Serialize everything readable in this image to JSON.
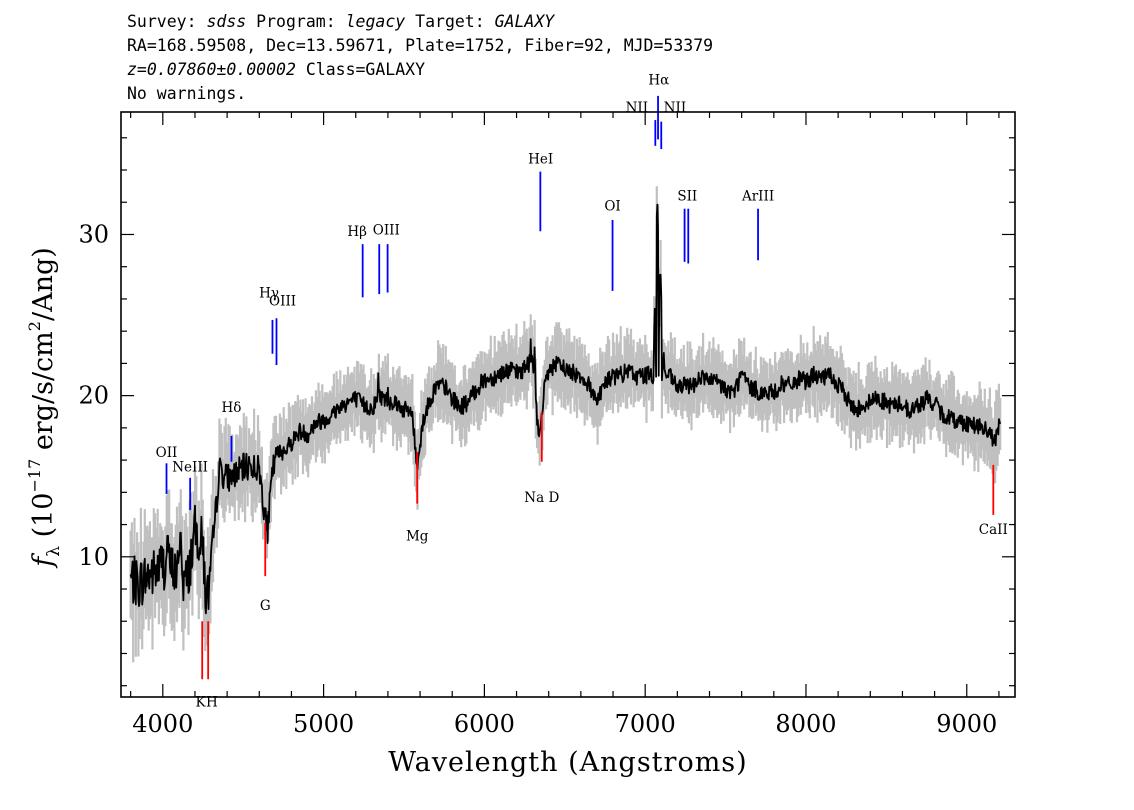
{
  "header": {
    "line1": {
      "survey_label": "Survey:",
      "survey": "sdss",
      "program_label": "Program:",
      "program": "legacy",
      "target_label": "Target:",
      "target": "GALAXY"
    },
    "line2": "RA=168.59508, Dec=13.59671, Plate=1752, Fiber=92, MJD=53379",
    "line3": {
      "z": "z=0.07860±0.00002",
      "class": "Class=GALAXY"
    },
    "line4": "No warnings."
  },
  "chart_data": {
    "type": "line",
    "xlabel": "Wavelength (Angstroms)",
    "ylabel": "f_λ (10^-17 erg/s/cm^2/Ang)",
    "ylabel_parts": {
      "f": "f",
      "lambda": "λ",
      "lead": " (10",
      "exp1": "−17",
      "mid": " erg/s/cm",
      "exp2": "2",
      "tail": "/Ang)"
    },
    "xlim": [
      3740,
      9300
    ],
    "ylim": [
      1.3,
      37.6
    ],
    "x_ticks": [
      4000,
      5000,
      6000,
      7000,
      8000,
      9000
    ],
    "y_ticks": [
      10,
      20,
      30
    ],
    "colors": {
      "flux": "#000000",
      "error_band": "#c0c0c0",
      "emission": "#0000ff",
      "absorption": "#ff0000"
    },
    "continuum": [
      [
        3800,
        8.6
      ],
      [
        3850,
        8.3
      ],
      [
        3900,
        8.8
      ],
      [
        3950,
        9.0
      ],
      [
        4000,
        9.6
      ],
      [
        4050,
        9.3
      ],
      [
        4100,
        9.0
      ],
      [
        4150,
        8.4
      ],
      [
        4200,
        11.6
      ],
      [
        4250,
        10.8
      ],
      [
        4270,
        7.0
      ],
      [
        4300,
        9.0
      ],
      [
        4350,
        15.4
      ],
      [
        4400,
        14.9
      ],
      [
        4450,
        15.1
      ],
      [
        4500,
        15.5
      ],
      [
        4550,
        15.7
      ],
      [
        4600,
        15.4
      ],
      [
        4650,
        11.5
      ],
      [
        4680,
        15.0
      ],
      [
        4700,
        16.3
      ],
      [
        4750,
        16.6
      ],
      [
        4800,
        17.1
      ],
      [
        4850,
        17.8
      ],
      [
        4900,
        17.6
      ],
      [
        4950,
        18.3
      ],
      [
        5000,
        18.5
      ],
      [
        5050,
        18.8
      ],
      [
        5100,
        19.3
      ],
      [
        5150,
        19.6
      ],
      [
        5200,
        19.8
      ],
      [
        5250,
        19.4
      ],
      [
        5300,
        19.2
      ],
      [
        5350,
        20.0
      ],
      [
        5400,
        19.7
      ],
      [
        5450,
        19.6
      ],
      [
        5500,
        19.1
      ],
      [
        5550,
        19.0
      ],
      [
        5580,
        15.6
      ],
      [
        5620,
        18.5
      ],
      [
        5650,
        19.4
      ],
      [
        5700,
        20.6
      ],
      [
        5750,
        20.6
      ],
      [
        5800,
        19.8
      ],
      [
        5850,
        19.3
      ],
      [
        5900,
        19.6
      ],
      [
        5950,
        20.4
      ],
      [
        6000,
        21.0
      ],
      [
        6050,
        21.1
      ],
      [
        6100,
        21.4
      ],
      [
        6150,
        21.6
      ],
      [
        6200,
        21.4
      ],
      [
        6250,
        21.7
      ],
      [
        6300,
        22.3
      ],
      [
        6340,
        17.0
      ],
      [
        6380,
        21.1
      ],
      [
        6400,
        21.6
      ],
      [
        6450,
        21.9
      ],
      [
        6500,
        21.7
      ],
      [
        6550,
        21.4
      ],
      [
        6600,
        21.3
      ],
      [
        6650,
        20.6
      ],
      [
        6700,
        19.8
      ],
      [
        6750,
        20.8
      ],
      [
        6800,
        21.2
      ],
      [
        6850,
        21.3
      ],
      [
        6900,
        21.5
      ],
      [
        6950,
        21.2
      ],
      [
        7000,
        21.3
      ],
      [
        7050,
        21.2
      ],
      [
        7100,
        21.3
      ],
      [
        7150,
        21.2
      ],
      [
        7200,
        20.5
      ],
      [
        7250,
        20.6
      ],
      [
        7300,
        20.7
      ],
      [
        7350,
        21.2
      ],
      [
        7400,
        20.9
      ],
      [
        7450,
        20.8
      ],
      [
        7500,
        20.4
      ],
      [
        7550,
        20.2
      ],
      [
        7600,
        21.3
      ],
      [
        7650,
        20.5
      ],
      [
        7700,
        20.3
      ],
      [
        7750,
        20.1
      ],
      [
        7800,
        20.2
      ],
      [
        7850,
        20.7
      ],
      [
        7900,
        20.6
      ],
      [
        7950,
        21.0
      ],
      [
        8000,
        20.9
      ],
      [
        8050,
        21.3
      ],
      [
        8100,
        21.0
      ],
      [
        8150,
        21.3
      ],
      [
        8200,
        20.6
      ],
      [
        8250,
        20.0
      ],
      [
        8300,
        19.1
      ],
      [
        8350,
        19.4
      ],
      [
        8400,
        19.6
      ],
      [
        8450,
        19.9
      ],
      [
        8500,
        19.5
      ],
      [
        8550,
        19.4
      ],
      [
        8600,
        19.5
      ],
      [
        8650,
        19.0
      ],
      [
        8700,
        19.4
      ],
      [
        8750,
        19.8
      ],
      [
        8800,
        19.5
      ],
      [
        8850,
        18.8
      ],
      [
        8900,
        18.6
      ],
      [
        8950,
        18.4
      ],
      [
        9000,
        18.3
      ],
      [
        9050,
        18.2
      ],
      [
        9100,
        18.0
      ],
      [
        9150,
        17.5
      ],
      [
        9180,
        17.2
      ],
      [
        9210,
        18.5
      ]
    ],
    "emission_peaks": [
      [
        4030,
        12.0
      ],
      [
        4110,
        12.2
      ],
      [
        4362,
        16.4
      ],
      [
        4520,
        16.1
      ],
      [
        5340,
        21.4
      ],
      [
        5400,
        20.5
      ],
      [
        6288,
        23.5
      ],
      [
        6312,
        23.0
      ],
      [
        7035,
        22.0
      ],
      [
        7060,
        25.4
      ],
      [
        7075,
        32.2
      ],
      [
        7094,
        28.2
      ],
      [
        7115,
        23.0
      ],
      [
        7253,
        21.1
      ],
      [
        7275,
        21.0
      ],
      [
        7610,
        22.0
      ]
    ],
    "line_markers": [
      {
        "id": "oii",
        "label": "OII",
        "kind": "emission",
        "wl": 4023,
        "y1": 15.8,
        "y2": 13.9,
        "lx": 4023,
        "ly": 16.2
      },
      {
        "id": "neiii",
        "label": "NeIII",
        "kind": "emission",
        "wl": 4170,
        "y1": 14.9,
        "y2": 12.9,
        "lx": 4170,
        "ly": 15.3
      },
      {
        "id": "hdelta",
        "label": "Hδ",
        "kind": "emission",
        "wl": 4427,
        "y1": 17.5,
        "y2": 15.9,
        "lx": 4427,
        "ly": 19.0
      },
      {
        "id": "hgamma",
        "label": "Hγ",
        "kind": "emission",
        "wl": 4682,
        "y1": 24.7,
        "y2": 22.6,
        "lx": 4661,
        "ly": 26.1
      },
      {
        "id": "oiii-4959",
        "label": "OIII",
        "kind": "emission",
        "wl": 4707,
        "y1": 24.8,
        "y2": 21.9,
        "lx": 4745,
        "ly": 25.6
      },
      {
        "id": "hbeta",
        "label": "Hβ",
        "kind": "emission",
        "wl": 5243,
        "y1": 29.4,
        "y2": 26.1,
        "lx": 5209,
        "ly": 29.9
      },
      {
        "id": "oiii-5007",
        "label": "OIII",
        "kind": "emission",
        "wl": 5346,
        "y1": 29.4,
        "y2": 26.3,
        "lx": 5390,
        "ly": 30.0
      },
      {
        "id": "oiii-5007b",
        "label": "",
        "kind": "emission",
        "wl": 5398,
        "y1": 29.4,
        "y2": 26.4,
        "lx": 5398,
        "ly": 29.4
      },
      {
        "id": "hei",
        "label": "HeI",
        "kind": "emission",
        "wl": 6348,
        "y1": 33.9,
        "y2": 30.2,
        "lx": 6350,
        "ly": 34.4
      },
      {
        "id": "oi",
        "label": "OI",
        "kind": "emission",
        "wl": 6797,
        "y1": 30.9,
        "y2": 26.5,
        "lx": 6797,
        "ly": 31.5
      },
      {
        "id": "nii-a",
        "label": "NII",
        "kind": "emission",
        "wl": 7063,
        "y1": 37.1,
        "y2": 35.5,
        "lx": 6948,
        "ly": 37.6
      },
      {
        "id": "halpha",
        "label": "Hα",
        "kind": "emission",
        "wl": 7080,
        "y1": 38.6,
        "y2": 35.9,
        "lx": 7085,
        "ly": 39.3
      },
      {
        "id": "nii-b",
        "label": "NII",
        "kind": "emission",
        "wl": 7100,
        "y1": 37.0,
        "y2": 35.3,
        "lx": 7185,
        "ly": 37.6
      },
      {
        "id": "sii-a",
        "label": "SII",
        "kind": "emission",
        "wl": 7245,
        "y1": 31.6,
        "y2": 28.3,
        "lx": 7262,
        "ly": 32.1
      },
      {
        "id": "sii-b",
        "label": "",
        "kind": "emission",
        "wl": 7268,
        "y1": 31.6,
        "y2": 28.2,
        "lx": 7268,
        "ly": 31.6
      },
      {
        "id": "ariii",
        "label": "ArIII",
        "kind": "emission",
        "wl": 7702,
        "y1": 31.6,
        "y2": 28.4,
        "lx": 7702,
        "ly": 32.1
      },
      {
        "id": "k",
        "label": "K",
        "kind": "absorption",
        "wl": 4245,
        "y1": 6.0,
        "y2": 2.4,
        "lx": 4235,
        "ly": 0.7
      },
      {
        "id": "h",
        "label": "H",
        "kind": "absorption",
        "wl": 4282,
        "y1": 6.0,
        "y2": 2.4,
        "lx": 4305,
        "ly": 0.7
      },
      {
        "id": "g",
        "label": "G",
        "kind": "absorption",
        "wl": 4637,
        "y1": 12.1,
        "y2": 8.8,
        "lx": 4637,
        "ly": 6.7
      },
      {
        "id": "mg",
        "label": "Mg",
        "kind": "absorption",
        "wl": 5582,
        "y1": 16.5,
        "y2": 13.3,
        "lx": 5582,
        "ly": 11.0
      },
      {
        "id": "nad",
        "label": "Na D",
        "kind": "absorption",
        "wl": 6357,
        "y1": 19.0,
        "y2": 15.9,
        "lx": 6357,
        "ly": 13.4
      },
      {
        "id": "caii",
        "label": "CaII",
        "kind": "absorption",
        "wl": 9165,
        "y1": 15.7,
        "y2": 12.6,
        "lx": 9165,
        "ly": 11.4
      }
    ]
  }
}
